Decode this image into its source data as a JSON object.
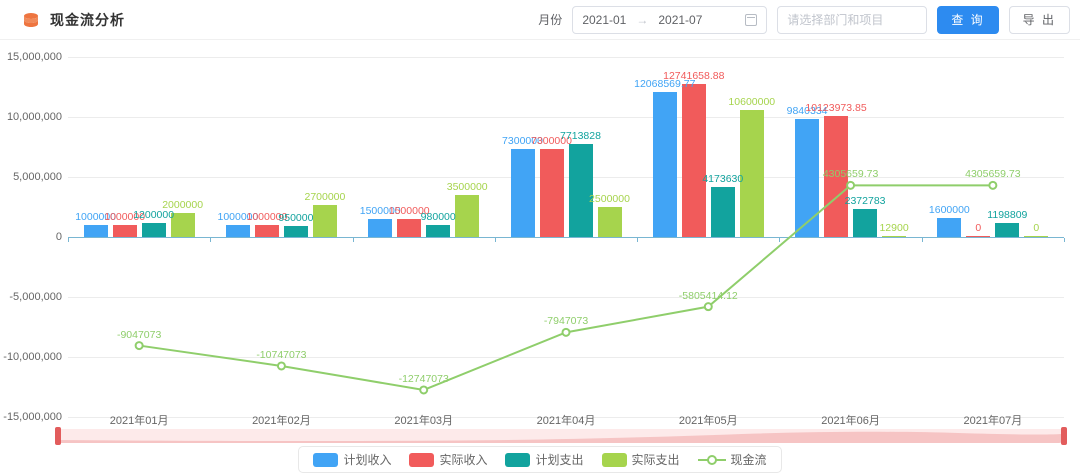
{
  "header": {
    "title": "现金流分析",
    "month_label": "月份",
    "date_start": "2021-01",
    "date_arrow": "→",
    "date_end": "2021-07",
    "select_placeholder": "请选择部门和项目",
    "query_label": "查 询",
    "export_label": "导 出"
  },
  "colors": {
    "accent_blue": "#2d8bf0",
    "bar_plan_income": "#41A4F5",
    "bar_actual_income": "#F15B5B",
    "bar_plan_expense": "#12A39E",
    "bar_actual_expense": "#A6D44D",
    "cashflow_line": "#8FCE6B",
    "axis_line": "#79b6d2",
    "datazoom_track": "#fdeaea",
    "datazoom_shadow": "#f5bdbd",
    "datazoom_handle": "#e25c5c",
    "title_icon": "#ee7540"
  },
  "chart_data": {
    "type": "bar",
    "title": "现金流分析",
    "categories": [
      "2021年01月",
      "2021年02月",
      "2021年03月",
      "2021年04月",
      "2021年05月",
      "2021年06月",
      "2021年07月"
    ],
    "series": [
      {
        "name": "计划收入",
        "type": "bar",
        "color": "#41A4F5",
        "values": [
          1000000,
          1000000,
          1500000,
          7300000,
          12068569.77,
          9840334,
          1600000
        ]
      },
      {
        "name": "实际收入",
        "type": "bar",
        "color": "#F15B5B",
        "values": [
          1000000,
          1000000,
          1500000,
          7300000,
          12741658.88,
          10123973.85,
          0
        ]
      },
      {
        "name": "计划支出",
        "type": "bar",
        "color": "#12A39E",
        "values": [
          1200000,
          950000,
          980000,
          7713828,
          4173630,
          2372783,
          1198809
        ]
      },
      {
        "name": "实际支出",
        "type": "bar",
        "color": "#A6D44D",
        "values": [
          2000000,
          2700000,
          3500000,
          2500000,
          10600000,
          12900,
          0
        ]
      },
      {
        "name": "现金流",
        "type": "line",
        "color": "#8FCE6B",
        "values": [
          -9047073,
          -10747073,
          -12747073,
          -7947073,
          -5805414.12,
          4305659.73,
          4305659.73
        ]
      }
    ],
    "ylim": [
      -15000000,
      15000000
    ],
    "y_ticks": [
      {
        "label": "15,000,000",
        "value": 15000000
      },
      {
        "label": "10,000,000",
        "value": 10000000
      },
      {
        "label": "5,000,000",
        "value": 5000000
      },
      {
        "label": "0",
        "value": 0
      },
      {
        "label": "-5,000,000",
        "value": -5000000
      },
      {
        "label": "-10,000,000",
        "value": -10000000
      },
      {
        "label": "-15,000,000",
        "value": -15000000
      }
    ],
    "grid": true,
    "legend_position": "bottom"
  }
}
